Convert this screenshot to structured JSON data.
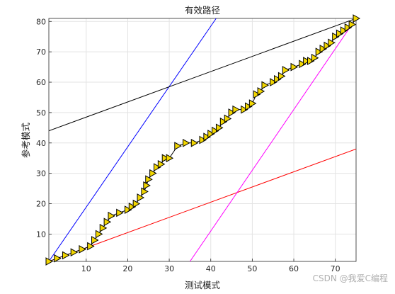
{
  "chart_data": {
    "type": "line",
    "title": "有效路径",
    "xlabel": "测试模式",
    "ylabel": "参考模式",
    "xlim": [
      1,
      75
    ],
    "ylim": [
      1,
      81
    ],
    "xticks": [
      10,
      20,
      30,
      40,
      50,
      60,
      70
    ],
    "yticks": [
      10,
      20,
      30,
      40,
      50,
      60,
      70,
      80
    ],
    "grid": true,
    "series": [
      {
        "color": "#0000ff",
        "x": [
          1,
          41.3
        ],
        "y": [
          1,
          81
        ]
      },
      {
        "color": "#ff0000",
        "x": [
          1,
          75
        ],
        "y": [
          1,
          38
        ]
      },
      {
        "color": "#000000",
        "x": [
          1,
          75
        ],
        "y": [
          44,
          81
        ]
      },
      {
        "color": "#ff00ff",
        "x": [
          35,
          75
        ],
        "y": [
          1,
          81
        ]
      },
      {
        "color": "#000000",
        "marker": "triangle-right",
        "marker_fill": "#f2d600",
        "x": [
          1,
          3,
          5,
          7,
          9,
          11,
          12,
          13,
          14,
          15,
          16,
          18,
          20,
          21,
          22,
          23,
          24,
          24.5,
          25,
          26,
          27,
          28,
          29,
          30,
          32,
          34,
          36,
          38,
          39,
          40,
          41,
          42,
          43,
          44,
          45,
          46,
          48,
          49,
          50,
          51,
          52,
          53,
          55,
          56,
          57,
          58,
          60,
          62,
          63,
          64,
          65,
          66,
          67,
          68,
          69,
          70,
          71,
          72,
          73,
          74,
          75
        ],
        "y": [
          1,
          2,
          3,
          4,
          5,
          6,
          8,
          10,
          12,
          14,
          16,
          17,
          18,
          19,
          20,
          22,
          24,
          26,
          28,
          30,
          32,
          33,
          35,
          35,
          39,
          40,
          40,
          41,
          42,
          43,
          44,
          45,
          47,
          48,
          50,
          51,
          51,
          52,
          53,
          56,
          57,
          59,
          60,
          61,
          62,
          64,
          65,
          66,
          67,
          67,
          68,
          70,
          71,
          72,
          73,
          75,
          76,
          77,
          78,
          79,
          81
        ]
      }
    ]
  },
  "watermark": "CSDN @我爱C编程"
}
